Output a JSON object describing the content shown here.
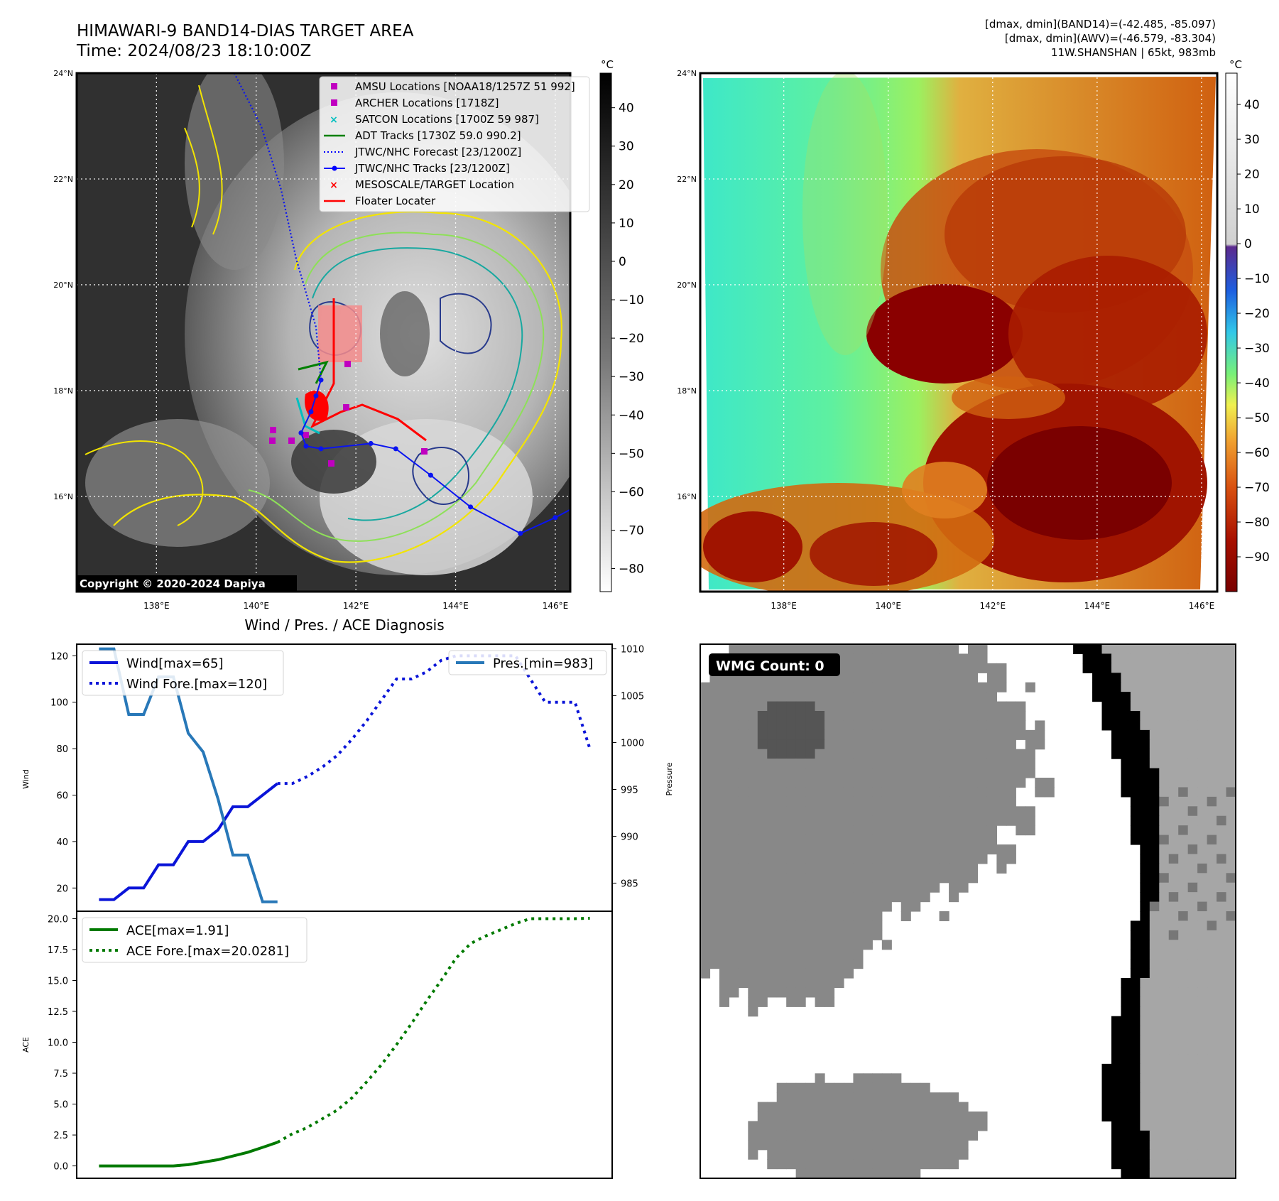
{
  "header": {
    "title_line1": "HIMAWARI-9 BAND14-DIAS TARGET AREA",
    "title_line2": "Time: 2024/08/23 18:10:00Z",
    "info_line1": "[dmax, dmin](BAND14)=(-42.485, -85.097)",
    "info_line2": "[dmax, dmin](AWV)=(-46.579, -83.304)",
    "info_line3": "11W.SHANSHAN | 65kt, 983mb"
  },
  "map_axes": {
    "lat_labels": [
      "24°N",
      "22°N",
      "20°N",
      "18°N",
      "16°N"
    ],
    "lon_labels": [
      "138°E",
      "140°E",
      "142°E",
      "144°E",
      "146°E"
    ],
    "lon_range": [
      136.4,
      146.3
    ],
    "lat_range": [
      14.2,
      24.0
    ]
  },
  "left_map": {
    "copyright": "Copyright © 2020-2024 Dapiya",
    "colorbar_unit": "°C",
    "colorbar_ticks": [
      "40",
      "30",
      "20",
      "10",
      "0",
      "−10",
      "−20",
      "−30",
      "−40",
      "−50",
      "−60",
      "−70",
      "−80"
    ],
    "legend": [
      {
        "label": "AMSU Locations [NOAA18/1257Z 51 992]",
        "color": "#c000c0",
        "marker": "square"
      },
      {
        "label": "ARCHER Locations [1718Z]",
        "color": "#c000c0",
        "marker": "square"
      },
      {
        "label": "SATCON Locations [1700Z 59 987]",
        "color": "#00bfbf",
        "marker": "x"
      },
      {
        "label": "ADT Tracks [1730Z 59.0 990.2]",
        "color": "#008000",
        "marker": "line"
      },
      {
        "label": "JTWC/NHC Forecast [23/1200Z]",
        "color": "#0000ff",
        "marker": "dotted"
      },
      {
        "label": "JTWC/NHC Tracks [23/1200Z]",
        "color": "#0000ff",
        "marker": "line-dot"
      },
      {
        "label": "MESOSCALE/TARGET Location",
        "color": "#ff0000",
        "marker": "x"
      },
      {
        "label": "Floater Locater",
        "color": "#ff0000",
        "marker": "line"
      }
    ],
    "jtwc_track": [
      [
        146.4,
        15.8
      ],
      [
        146.0,
        15.6
      ],
      [
        145.3,
        15.3
      ],
      [
        144.3,
        15.8
      ],
      [
        143.5,
        16.4
      ],
      [
        142.8,
        16.9
      ],
      [
        142.3,
        17.0
      ],
      [
        141.3,
        16.9
      ],
      [
        141.0,
        16.95
      ],
      [
        140.9,
        17.2
      ],
      [
        141.1,
        17.6
      ],
      [
        141.2,
        17.9
      ],
      [
        141.3,
        18.2
      ]
    ],
    "jtwc_forecast": [
      [
        141.3,
        18.2
      ],
      [
        141.2,
        19.2
      ],
      [
        140.8,
        20.5
      ],
      [
        140.5,
        21.8
      ],
      [
        140.1,
        23.0
      ],
      [
        139.4,
        24.3
      ]
    ]
  },
  "right_map": {
    "colorbar_unit": "°C",
    "colorbar_ticks": [
      "40",
      "30",
      "20",
      "10",
      "0",
      "−10",
      "−20",
      "−30",
      "−40",
      "−50",
      "−60",
      "−70",
      "−80",
      "−90"
    ]
  },
  "chart_data": [
    {
      "type": "line",
      "title": "Wind / Pres. / ACE Diagnosis",
      "ylabel": "Wind",
      "ylabel_right": "Pressure",
      "ylim": [
        10,
        125
      ],
      "ylim_right": [
        982,
        1010.5
      ],
      "yticks": [
        20,
        40,
        60,
        80,
        100,
        120
      ],
      "yticks_right": [
        985,
        990,
        995,
        1000,
        1005,
        1010
      ],
      "series": [
        {
          "name": "Wind[max=65]",
          "axis": "left",
          "style": "solid",
          "color": "#0a14d8",
          "x": [
            0,
            1,
            2,
            3,
            4,
            5,
            6,
            7,
            8,
            9,
            10,
            11,
            12
          ],
          "values": [
            15,
            15,
            20,
            20,
            30,
            30,
            40,
            40,
            45,
            55,
            55,
            60,
            65
          ]
        },
        {
          "name": "Wind Fore.[max=120]",
          "axis": "left",
          "style": "dotted",
          "color": "#0a14d8",
          "x": [
            12,
            13,
            14,
            15,
            16,
            17,
            18,
            19,
            20,
            21,
            22,
            23,
            24,
            25,
            26,
            27,
            28,
            29,
            30,
            31,
            32,
            33
          ],
          "values": [
            65,
            65,
            68,
            72,
            77,
            84,
            92,
            101,
            110,
            110,
            113,
            118,
            120,
            120,
            120,
            120,
            120,
            110,
            100,
            100,
            100,
            80
          ]
        },
        {
          "name": "Pres.[min=983]",
          "axis": "right",
          "style": "solid",
          "color": "#2878b8",
          "x": [
            0,
            1,
            2,
            3,
            4,
            5,
            6,
            7,
            8,
            9,
            10,
            11,
            12
          ],
          "values": [
            1010,
            1010,
            1003,
            1003,
            1007,
            1007,
            1001,
            999,
            994,
            988,
            988,
            983,
            983
          ]
        }
      ],
      "x_range": [
        -1.5,
        34.5
      ]
    },
    {
      "type": "line",
      "ylabel": "ACE",
      "ylim": [
        -1,
        20.6
      ],
      "yticks": [
        0.0,
        2.5,
        5.0,
        7.5,
        10.0,
        12.5,
        15.0,
        17.5,
        20.0
      ],
      "series": [
        {
          "name": "ACE[max=1.91]",
          "style": "solid",
          "color": "#007a00",
          "x": [
            0,
            1,
            2,
            3,
            4,
            5,
            6,
            7,
            8,
            9,
            10,
            11,
            12
          ],
          "values": [
            0,
            0,
            0,
            0,
            0,
            0,
            0.1,
            0.3,
            0.5,
            0.8,
            1.1,
            1.5,
            1.91
          ]
        },
        {
          "name": "ACE Fore.[max=20.0281]",
          "style": "dotted",
          "color": "#007a00",
          "x": [
            12,
            13,
            14,
            15,
            16,
            17,
            18,
            19,
            20,
            21,
            22,
            23,
            24,
            25,
            26,
            27,
            28,
            29,
            30,
            31,
            32,
            33
          ],
          "values": [
            1.91,
            2.6,
            3.1,
            3.8,
            4.5,
            5.5,
            6.8,
            8.2,
            9.8,
            11.5,
            13.3,
            15.0,
            16.8,
            18.0,
            18.6,
            19.1,
            19.6,
            20.0,
            20.0,
            20.0,
            20.0,
            20.03
          ]
        }
      ],
      "x_range": [
        -1.5,
        34.5
      ]
    }
  ],
  "wmg": {
    "label": "WMG Count: 0"
  }
}
